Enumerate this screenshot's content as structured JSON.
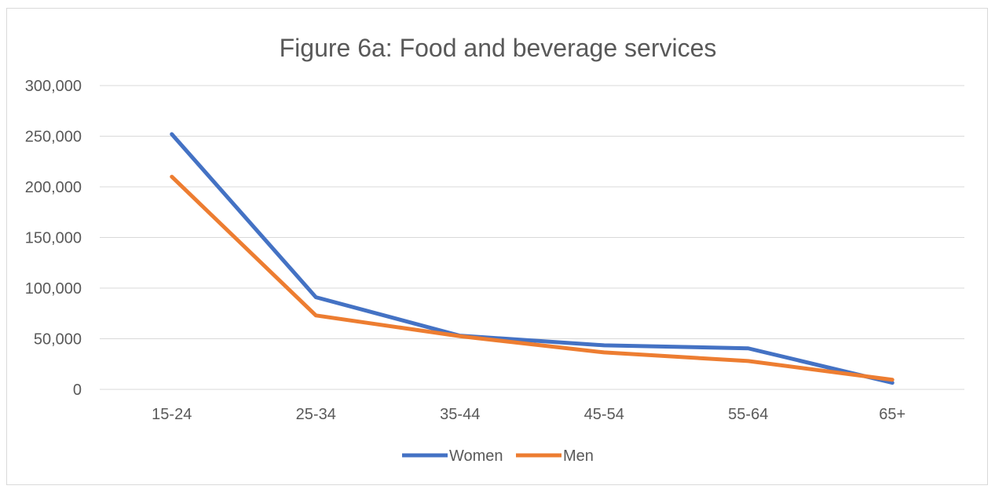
{
  "chart_data": {
    "type": "line",
    "title": "Figure 6a: Food and beverage services",
    "categories": [
      "15-24",
      "25-34",
      "35-44",
      "45-54",
      "55-64",
      "65+"
    ],
    "series": [
      {
        "name": "Women",
        "color": "#4472C4",
        "values": [
          252000,
          91000,
          53000,
          43500,
          40500,
          6500
        ]
      },
      {
        "name": "Men",
        "color": "#ED7D31",
        "values": [
          210000,
          73000,
          52500,
          36500,
          28000,
          9500
        ]
      }
    ],
    "yticks": [
      "0",
      "50,000",
      "100,000",
      "150,000",
      "200,000",
      "250,000",
      "300,000"
    ],
    "ylim": [
      0,
      300000
    ],
    "grid": true,
    "legend_position": "bottom"
  }
}
